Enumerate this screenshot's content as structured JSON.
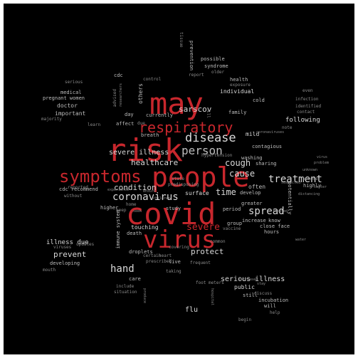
{
  "colors": {
    "background": "#000000",
    "accent_red": "#c8272d",
    "text_light": "#d9d9d9",
    "text_dim": "#8a8a8a"
  },
  "words": {
    "covid": "covid",
    "people": "people",
    "risk": "risk",
    "may": "may",
    "virus": "virus",
    "symptoms": "symptoms",
    "respiratory": "respiratory",
    "disease": "disease",
    "person": "person",
    "coronavirus": "coronavirus",
    "severe_red": "severe",
    "treatment": "treatment",
    "spread": "spread",
    "hand": "hand",
    "cough": "cough",
    "cause": "cause",
    "time": "time",
    "healthcare": "healthcare",
    "condition": "condition",
    "protect": "protect",
    "prevent": "prevent",
    "severe_illness": "severe illness",
    "sarscov": "sarscov",
    "individual": "individual",
    "mild": "mild",
    "following": "following",
    "spread_risk": "spread risk",
    "illness_due": "illness due",
    "cdc_recommend": "cdc recommend",
    "doctor": "doctor",
    "important": "important",
    "pregnant_women": "pregnant women",
    "medical": "medical",
    "serious_illness": "serious illness",
    "flu": "flu",
    "public": "public",
    "incubation": "incubation",
    "hours": "hours",
    "know": "know",
    "close_face": "close face",
    "period": "period",
    "increase": "increase",
    "greater": "greater",
    "touching": "touching",
    "surface": "surface",
    "study": "study",
    "health": "health",
    "family": "family",
    "day": "day",
    "currently": "currently",
    "affect": "affect",
    "breath": "breath",
    "cdc": "cdc",
    "others": "others",
    "possible": "possible",
    "prevention": "prevention",
    "syndrome": "syndrome",
    "exposure": "exposure",
    "cold": "cold",
    "contagious": "contagious",
    "washing": "washing",
    "sharing": "sharing",
    "often": "often",
    "develop": "develop",
    "become": "become",
    "highly": "highly",
    "potentially": "potentially",
    "viruses": "viruses",
    "developing": "developing",
    "mouth": "mouth",
    "updates": "updates",
    "care": "care",
    "droplets": "droplets",
    "death": "death",
    "prescribed": "prescribed",
    "certain": "certain",
    "live": "live",
    "include": "include",
    "situation": "situation",
    "foot_meters": "foot meters",
    "still": "still",
    "discuss": "discuss",
    "will": "will",
    "help": "help",
    "begin": "begin",
    "reported": "reported",
    "without": "without",
    "serious": "serious",
    "learn": "learn",
    "majority": "majority",
    "infection": "infection",
    "identified": "identified",
    "contact": "contact",
    "even": "even",
    "note": "note",
    "state": "state",
    "home": "home",
    "higher": "higher",
    "immune_system": "immune system",
    "covering": "covering",
    "predisposing": "predisposing",
    "group": "group",
    "vaccine": "vaccine",
    "report": "report",
    "older": "older",
    "ill": "ill",
    "common": "common",
    "keep": "keep",
    "due": "due",
    "control": "control",
    "advised": "advised",
    "taking": "taking",
    "hypertension": "hypertension",
    "frequent": "frequent",
    "coronaviruses": "coronaviruses",
    "heart": "heart",
    "produce": "produce",
    "increased": "increased",
    "water": "water",
    "center": "center",
    "distancing": "distancing",
    "researchers": "researchers",
    "suspected": "suspected",
    "experience": "experience",
    "children": "children",
    "ensure": "ensure",
    "seek": "seek",
    "hospital": "hospital",
    "treated": "treated",
    "unknown": "unknown",
    "virus_small": "virus",
    "problem": "problem",
    "stay": "stay",
    "tissue": "tissue"
  }
}
